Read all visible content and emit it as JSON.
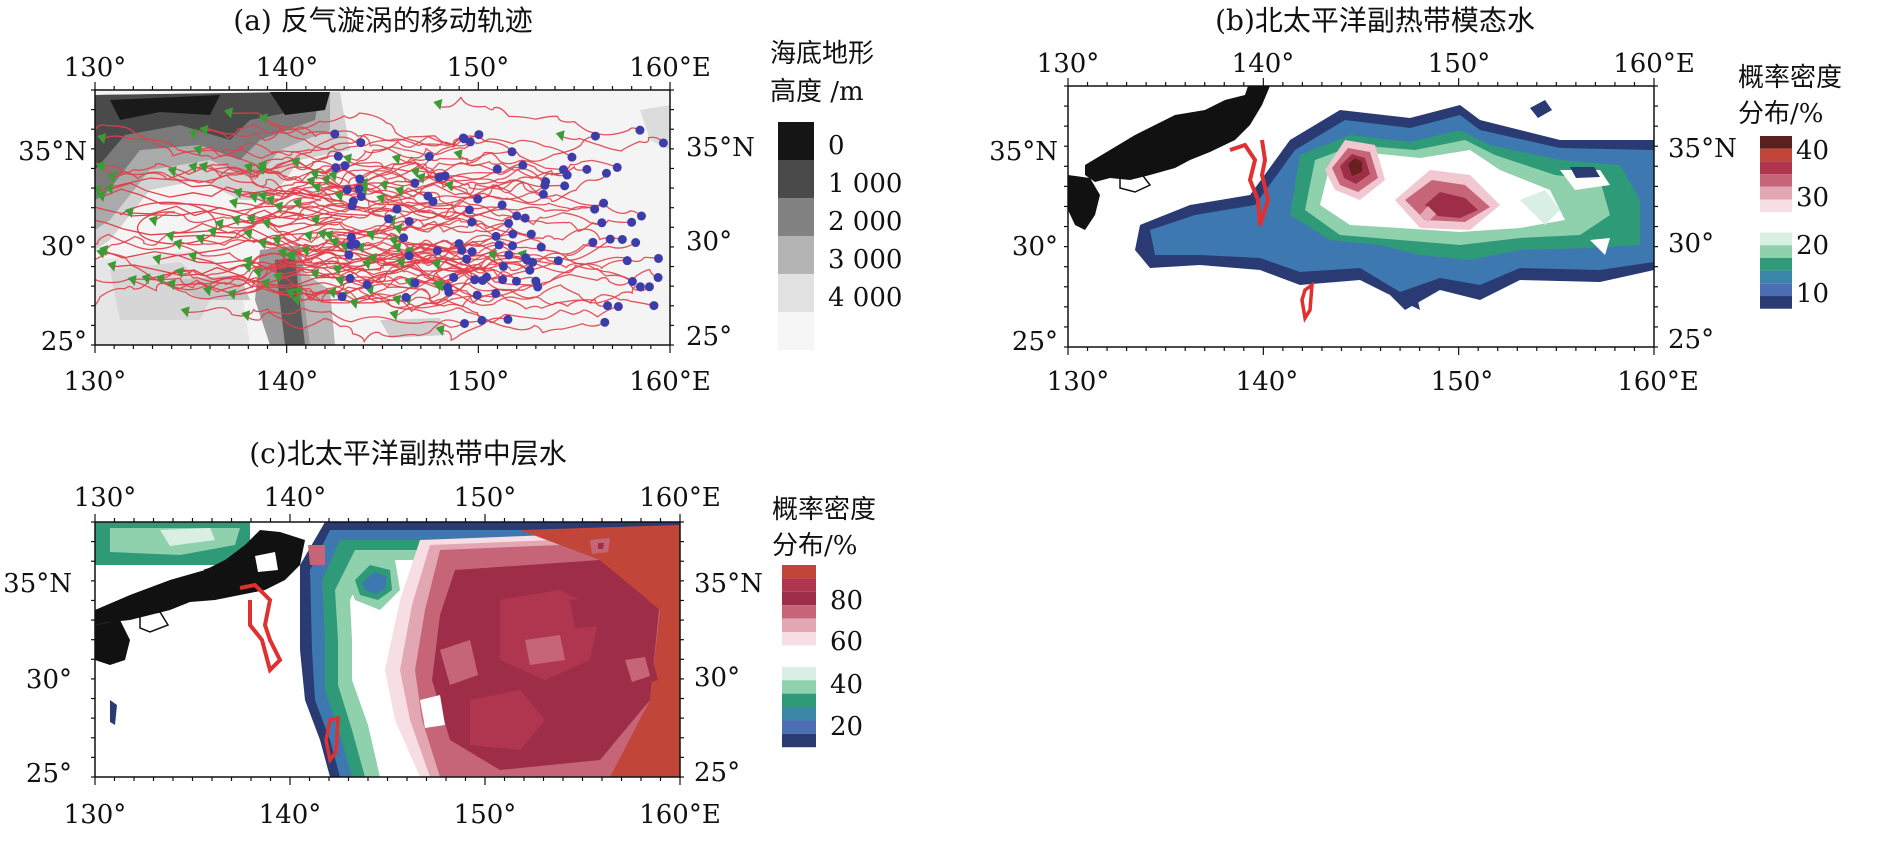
{
  "panels": [
    {
      "id": "a",
      "title": "(a) 反气漩涡的移动轨迹",
      "x_ticks_top": [
        "130°",
        "140°",
        "150°",
        "160°E"
      ],
      "x_ticks_bottom": [
        "130°",
        "140°",
        "150°",
        "160°E"
      ],
      "y_ticks_left": [
        "35°N",
        "30°",
        "25°"
      ],
      "y_ticks_right": [
        "35°N",
        "30°",
        "25°"
      ],
      "colorbar": {
        "title_line1": "海底地形",
        "title_line2": "高度 /m",
        "labels": [
          "0",
          "1 000",
          "2 000",
          "3 000",
          "4 000"
        ],
        "colors": [
          "#151515",
          "#4a4a4a",
          "#828282",
          "#b4b4b4",
          "#e2e2e2",
          "#f6f6f6"
        ]
      },
      "colors": {
        "tracks": "#e0404a",
        "start_markers": "#3d9b35",
        "end_markers": "#3c3caa"
      }
    },
    {
      "id": "b",
      "title": "(b)北太平洋副热带模态水",
      "x_ticks_top": [
        "130°",
        "140°",
        "150°",
        "160°E"
      ],
      "x_ticks_bottom": [
        "130°",
        "140°",
        "150°",
        "160°E"
      ],
      "y_ticks_left": [
        "35°N",
        "30°",
        "25°"
      ],
      "y_ticks_right": [
        "35°N",
        "30°",
        "25°"
      ],
      "colorbar": {
        "title_line1": "概率密度",
        "title_line2": "分布/%",
        "labels": [
          "40",
          "30",
          "20",
          "10"
        ],
        "colors": [
          "#5a1f1f",
          "#c2453a",
          "#b03650",
          "#c76578",
          "#e3a6b3",
          "#f7dde4",
          "#ffffff",
          "#d9efe3",
          "#8fd0ad",
          "#2f9a78",
          "#3b86a8",
          "#4b6eb5",
          "#2a3a72"
        ]
      }
    },
    {
      "id": "c",
      "title": "(c)北太平洋副热带中层水",
      "x_ticks_top": [
        "130°",
        "140°",
        "150°",
        "160°E"
      ],
      "x_ticks_bottom": [
        "130°",
        "140°",
        "150°",
        "160°E"
      ],
      "y_ticks_left": [
        "35°N",
        "30°",
        "25°"
      ],
      "y_ticks_right": [
        "35°N",
        "30°",
        "25°"
      ],
      "colorbar": {
        "title_line1": "概率密度",
        "title_line2": "分布/%",
        "labels": [
          "80",
          "60",
          "40",
          "20"
        ],
        "colors": [
          "#c2453a",
          "#b03650",
          "#9e2e48",
          "#c76578",
          "#e3a6b3",
          "#f7dde4",
          "#ffffff",
          "#d9efe3",
          "#8fd0ad",
          "#2f9a78",
          "#3b86a8",
          "#4b6eb5",
          "#2a3a72"
        ]
      }
    }
  ]
}
